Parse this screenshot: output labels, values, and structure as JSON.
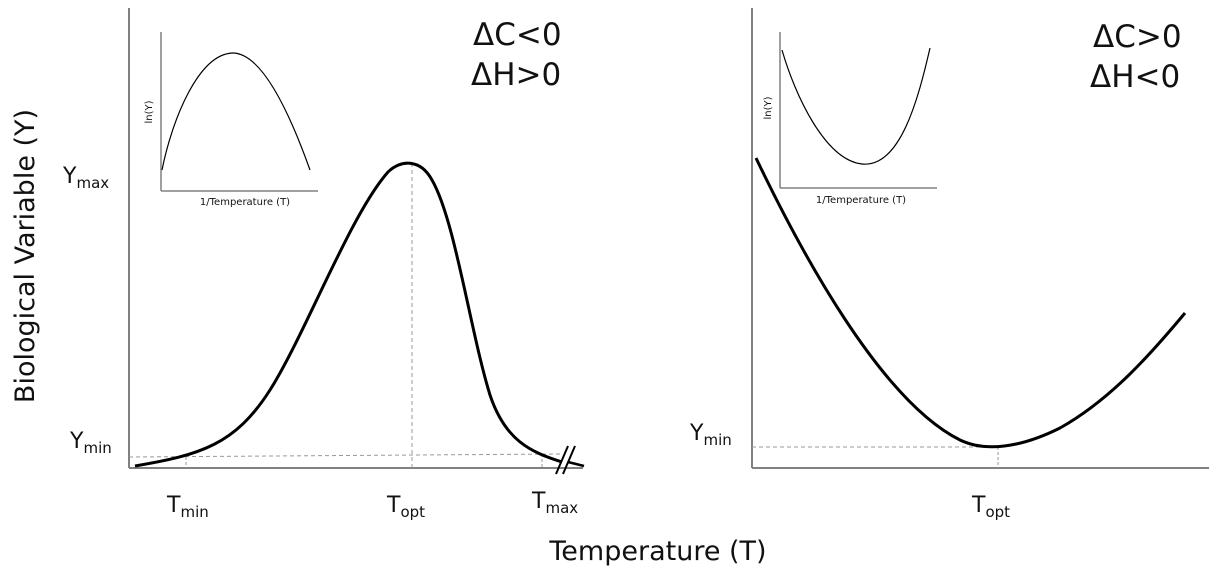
{
  "x_axis_title": "Temperature (T)",
  "y_axis_title": "Biological Variable (Y)",
  "left_panel": {
    "delta_c": "ΔC<0",
    "delta_h": "ΔH>0",
    "ymax_main": "Y",
    "ymax_sub": "max",
    "ymin_main": "Y",
    "ymin_sub": "min",
    "tmin_main": "T",
    "tmin_sub": "min",
    "topt_main": "T",
    "topt_sub": "opt",
    "tmax_main": "T",
    "tmax_sub": "max",
    "inset": {
      "xlabel": "1/Temperature (T)",
      "ylabel": "ln(Y)"
    }
  },
  "right_panel": {
    "delta_c": "ΔC>0",
    "delta_h": "ΔH<0",
    "ymin_main": "Y",
    "ymin_sub": "min",
    "topt_main": "T",
    "topt_sub": "opt",
    "inset": {
      "xlabel": "1/Temperature (T)",
      "ylabel": "ln(Y)"
    }
  },
  "colors": {
    "curve": "#000000",
    "axis": "#808080",
    "guide": "#999999"
  }
}
